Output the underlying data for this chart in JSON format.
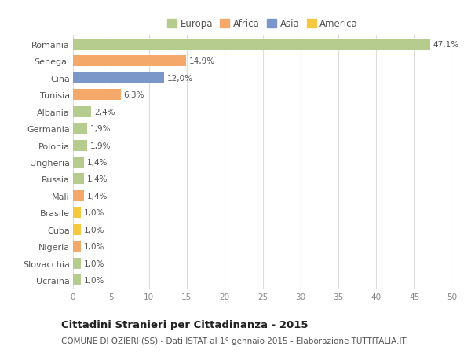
{
  "categories": [
    "Ucraina",
    "Slovacchia",
    "Nigeria",
    "Cuba",
    "Brasile",
    "Mali",
    "Russia",
    "Ungheria",
    "Polonia",
    "Germania",
    "Albania",
    "Tunisia",
    "Cina",
    "Senegal",
    "Romania"
  ],
  "values": [
    1.0,
    1.0,
    1.0,
    1.0,
    1.0,
    1.4,
    1.4,
    1.4,
    1.9,
    1.9,
    2.4,
    6.3,
    12.0,
    14.9,
    47.1
  ],
  "labels": [
    "1,0%",
    "1,0%",
    "1,0%",
    "1,0%",
    "1,0%",
    "1,4%",
    "1,4%",
    "1,4%",
    "1,9%",
    "1,9%",
    "2,4%",
    "6,3%",
    "12,0%",
    "14,9%",
    "47,1%"
  ],
  "colors": [
    "#b5cc8e",
    "#b5cc8e",
    "#f4a96b",
    "#f5c842",
    "#f5c842",
    "#f4a96b",
    "#b5cc8e",
    "#b5cc8e",
    "#b5cc8e",
    "#b5cc8e",
    "#b5cc8e",
    "#f4a96b",
    "#7b96c8",
    "#f4a96b",
    "#b5cc8e"
  ],
  "legend_labels": [
    "Europa",
    "Africa",
    "Asia",
    "America"
  ],
  "legend_colors": [
    "#b5cc8e",
    "#f4a96b",
    "#7b96c8",
    "#f5c842"
  ],
  "title": "Cittadini Stranieri per Cittadinanza - 2015",
  "subtitle": "COMUNE DI OZIERI (SS) - Dati ISTAT al 1° gennaio 2015 - Elaborazione TUTTITALIA.IT",
  "xlim": [
    0,
    50
  ],
  "xticks": [
    0,
    5,
    10,
    15,
    20,
    25,
    30,
    35,
    40,
    45,
    50
  ],
  "bg_color": "#ffffff",
  "grid_color": "#dddddd",
  "bar_height": 0.65
}
